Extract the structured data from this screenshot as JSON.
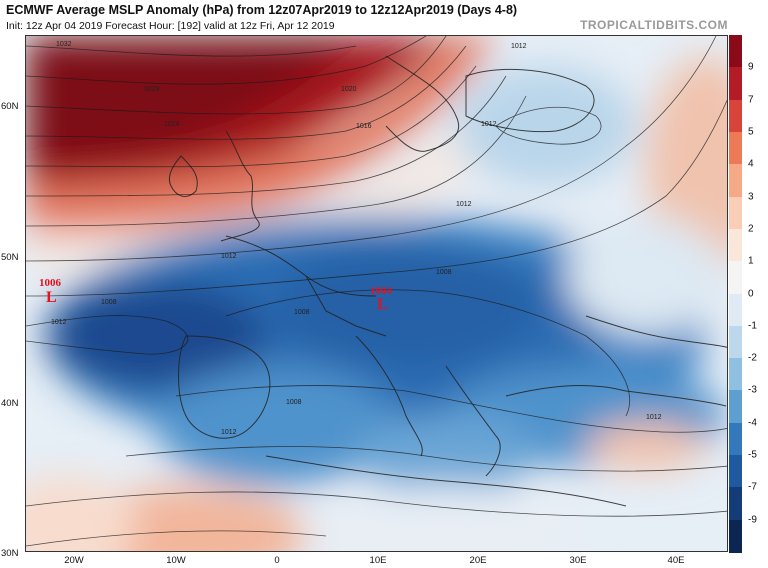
{
  "header": {
    "title": "ECMWF Average MSLP Anomaly (hPa) from 12z07Apr2019 to 12z12Apr2019 (Days 4-8)",
    "subtitle": "Init: 12z Apr 04 2019   Forecast Hour: [192]   valid at 12z Fri, Apr 12 2019",
    "brand": "TROPICALTIDBITS.COM"
  },
  "axes": {
    "lat_labels": [
      "60N",
      "50N",
      "40N",
      "30N"
    ],
    "lon_labels": [
      "20W",
      "10W",
      "0",
      "10E",
      "20E",
      "30E",
      "40E"
    ]
  },
  "colorbar": {
    "ticks": [
      "9",
      "7",
      "5",
      "4",
      "3",
      "2",
      "1",
      "0",
      "-1",
      "-2",
      "-3",
      "-4",
      "-5",
      "-7",
      "-9"
    ],
    "colors": [
      "#8b0a1a",
      "#b31c26",
      "#d6443a",
      "#ec7a57",
      "#f5a987",
      "#f9cdb6",
      "#fbe6da",
      "#f4f4f4",
      "#dfeaf5",
      "#bdd7ec",
      "#8fbfe1",
      "#5e9fd0",
      "#3378bb",
      "#1f59a0",
      "#143c78",
      "#0b2650"
    ]
  },
  "lows": [
    {
      "value": "1006",
      "symbol": "L"
    },
    {
      "value": "1004",
      "symbol": "L"
    }
  ],
  "isobar_labels": [
    "1032",
    "1028",
    "1024",
    "1020",
    "1016",
    "1012",
    "1012",
    "1012",
    "1012",
    "1012",
    "1008",
    "1008",
    "1008",
    "1008",
    "1012",
    "1012"
  ]
}
